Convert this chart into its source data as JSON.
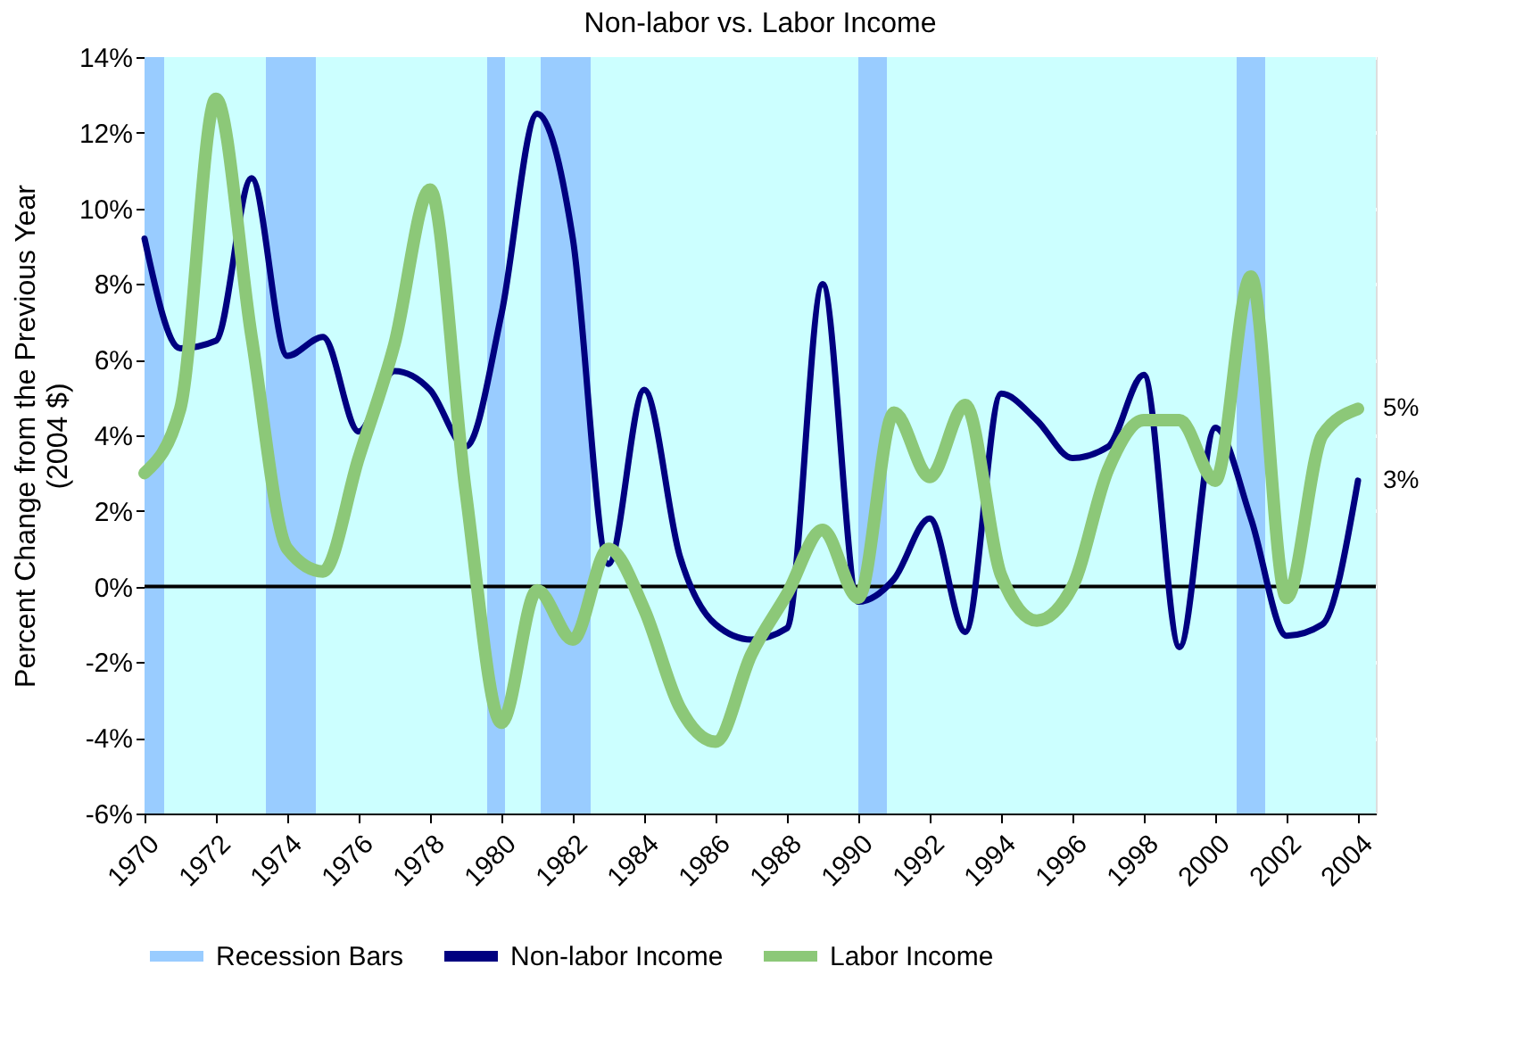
{
  "chart_data": {
    "type": "line",
    "title": "Non-labor vs. Labor Income",
    "ylabel": "Percent Change from the Previous Year\n(2004 $)",
    "x": [
      1970,
      1971,
      1972,
      1973,
      1974,
      1975,
      1976,
      1977,
      1978,
      1979,
      1980,
      1981,
      1982,
      1983,
      1984,
      1985,
      1986,
      1987,
      1988,
      1989,
      1990,
      1991,
      1992,
      1993,
      1994,
      1995,
      1996,
      1997,
      1998,
      1999,
      2000,
      2001,
      2002,
      2003,
      2004
    ],
    "series": [
      {
        "name": "Non-labor Income",
        "color": "#000080",
        "values": [
          9.2,
          6.3,
          6.5,
          10.8,
          6.1,
          6.6,
          4.1,
          5.7,
          5.2,
          3.7,
          7.2,
          12.5,
          9.2,
          0.6,
          5.2,
          0.8,
          -1.0,
          -1.4,
          -1.1,
          8.0,
          -0.4,
          0.2,
          1.8,
          -1.2,
          5.1,
          4.4,
          3.4,
          3.7,
          5.6,
          -1.6,
          4.2,
          1.8,
          -1.3,
          -1.0,
          2.8
        ]
      },
      {
        "name": "Labor Income",
        "color": "#8cc878",
        "values": [
          3.0,
          4.7,
          12.9,
          6.6,
          1.0,
          0.4,
          3.4,
          6.4,
          10.5,
          2.5,
          -3.6,
          -0.1,
          -1.4,
          1.0,
          -0.6,
          -3.2,
          -4.1,
          -1.8,
          -0.2,
          1.5,
          -0.3,
          4.6,
          2.9,
          4.8,
          0.3,
          -0.9,
          0.0,
          3.1,
          4.4,
          4.4,
          2.8,
          8.2,
          -0.3,
          4.0,
          4.7
        ]
      }
    ],
    "xlim": [
      1970,
      2004.5
    ],
    "xticks": [
      1970,
      1972,
      1974,
      1976,
      1978,
      1980,
      1982,
      1984,
      1986,
      1988,
      1990,
      1992,
      1994,
      1996,
      1998,
      2000,
      2002,
      2004
    ],
    "ylim": [
      -6,
      14
    ],
    "yticks": [
      {
        "value": -6,
        "label": "-6%"
      },
      {
        "value": -4,
        "label": "-4%"
      },
      {
        "value": -2,
        "label": "-2%"
      },
      {
        "value": 0,
        "label": "0%"
      },
      {
        "value": 2,
        "label": "2%"
      },
      {
        "value": 4,
        "label": "4%"
      },
      {
        "value": 6,
        "label": "6%"
      },
      {
        "value": 8,
        "label": "8%"
      },
      {
        "value": 10,
        "label": "10%"
      },
      {
        "value": 12,
        "label": "12%"
      },
      {
        "value": 14,
        "label": "14%"
      }
    ],
    "bands": [
      {
        "axis": "x",
        "from": 1970,
        "to": 1970.55,
        "label": "Recession Bars",
        "color": "#99ccff"
      },
      {
        "axis": "x",
        "from": 1973.4,
        "to": 1974.8,
        "color": "#99ccff"
      },
      {
        "axis": "x",
        "from": 1979.6,
        "to": 1980.1,
        "color": "#99ccff"
      },
      {
        "axis": "x",
        "from": 1981.1,
        "to": 1982.5,
        "color": "#99ccff"
      },
      {
        "axis": "x",
        "from": 1990.0,
        "to": 1990.8,
        "color": "#99ccff"
      },
      {
        "axis": "x",
        "from": 2000.6,
        "to": 2001.4,
        "color": "#99ccff"
      }
    ],
    "ref_lines": [
      {
        "axis": "y",
        "value": 0,
        "color": "#000000"
      }
    ],
    "annotations": [
      {
        "text": "5%",
        "x": 2004,
        "y": 4.7
      },
      {
        "text": "3%",
        "x": 2004,
        "y": 2.8
      }
    ],
    "grid": "y",
    "legend": "bottom",
    "marker": "none",
    "line_style": "solid"
  }
}
